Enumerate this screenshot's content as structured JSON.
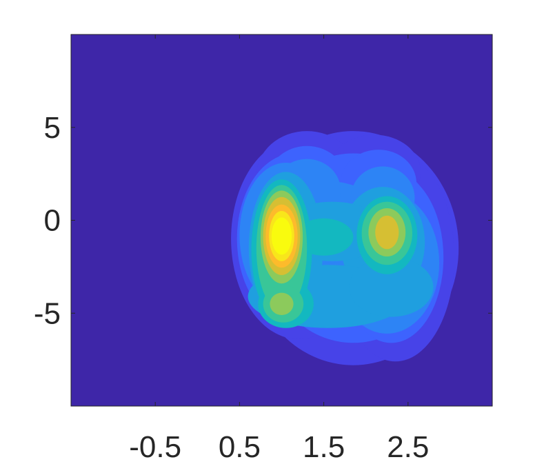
{
  "chart_data": {
    "type": "contour",
    "title": "",
    "xlabel": "",
    "ylabel": "",
    "xlim": [
      -1.5,
      3.5
    ],
    "ylim": [
      -10,
      10
    ],
    "grid": false,
    "legend": "none",
    "x_ticks": [
      {
        "value": -0.5,
        "label": "-0.5"
      },
      {
        "value": 0.5,
        "label": "0.5"
      },
      {
        "value": 1.5,
        "label": "1.5"
      },
      {
        "value": 2.5,
        "label": "2.5"
      }
    ],
    "y_ticks": [
      {
        "value": 5,
        "label": "5"
      },
      {
        "value": 0,
        "label": "0"
      },
      {
        "value": -5,
        "label": "-5"
      }
    ],
    "colormap": [
      "#3e26a8",
      "#4743e8",
      "#3d63fe",
      "#2d84f5",
      "#1f9fdf",
      "#13b8c0",
      "#39c698",
      "#8cca5c",
      "#d6bf33",
      "#fdbb2b",
      "#f8e61b",
      "#f9fb0e"
    ],
    "peaks": [
      {
        "x": 1.0,
        "y": -0.8,
        "relative_height": 1.0
      },
      {
        "x": 2.25,
        "y": -0.6,
        "relative_height": 0.62
      },
      {
        "x": 1.0,
        "y": -4.5,
        "relative_height": 0.45
      },
      {
        "x": 1.8,
        "y": -3.3,
        "relative_height": 0.2
      },
      {
        "x": 1.8,
        "y": 3.0,
        "relative_height": 0.15
      }
    ]
  }
}
